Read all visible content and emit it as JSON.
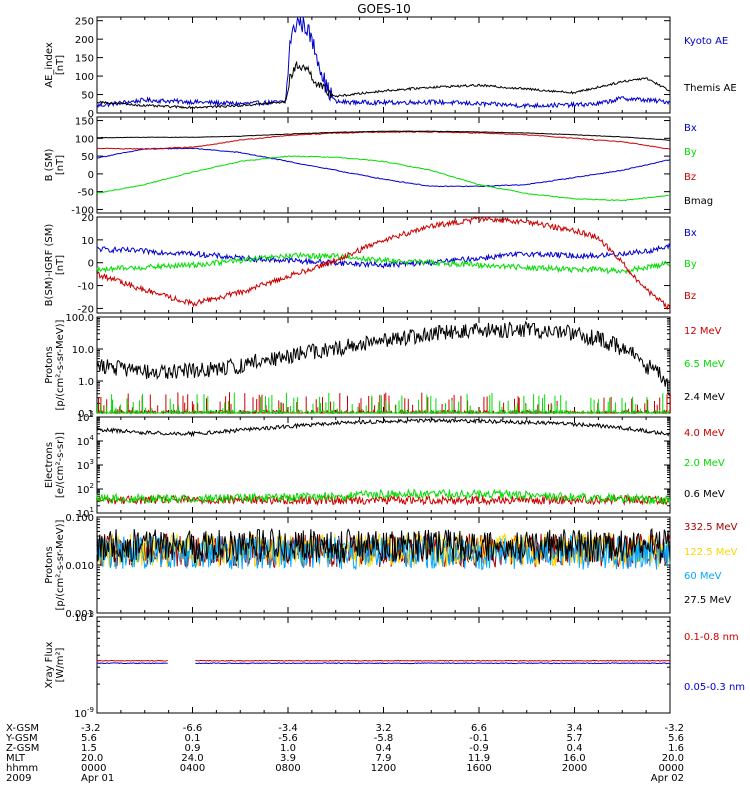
{
  "title": "GOES-10",
  "colors": {
    "black": "#000000",
    "blue": "#0000cc",
    "green": "#00dd00",
    "red": "#cc0000",
    "darkred": "#aa0000",
    "yellow": "#ffd400",
    "cyan": "#00a8ff",
    "purple": "#8000c0"
  },
  "time_axis": {
    "row_labels": [
      "X-GSM",
      "Y-GSM",
      "Z-GSM",
      "MLT",
      "hhmm",
      "2009"
    ],
    "columns": [
      {
        "values": [
          "-3.2",
          "5.6",
          "1.5",
          "20.0",
          "0000",
          "Apr 01"
        ]
      },
      {
        "values": [
          "-6.6",
          "0.1",
          "0.9",
          "24.0",
          "0400",
          ""
        ]
      },
      {
        "values": [
          "-3.4",
          "-5.6",
          "1.0",
          "3.9",
          "0800",
          ""
        ]
      },
      {
        "values": [
          "3.2",
          "-5.8",
          "0.4",
          "7.9",
          "1200",
          ""
        ]
      },
      {
        "values": [
          "6.6",
          "-0.1",
          "-0.9",
          "11.9",
          "1600",
          ""
        ]
      },
      {
        "values": [
          "3.4",
          "5.7",
          "0.4",
          "16.0",
          "2000",
          ""
        ]
      },
      {
        "values": [
          "-3.2",
          "5.6",
          "1.6",
          "20.0",
          "0000",
          "Apr 02"
        ]
      }
    ]
  },
  "chart_data": [
    {
      "type": "line",
      "panel": "ae",
      "ylabel": "AE_index [nT]",
      "yticks": [
        "0",
        "50",
        "100",
        "150",
        "200",
        "250"
      ],
      "ylim": [
        0,
        260
      ],
      "x": [
        0,
        2,
        4,
        6,
        7.9,
        8.1,
        8.4,
        8.8,
        9.2,
        9.6,
        10,
        12,
        14,
        16,
        18,
        20,
        21,
        22,
        23,
        24
      ],
      "series": [
        {
          "name": "Kyoto AE",
          "color": "blue",
          "values": [
            20,
            35,
            30,
            25,
            30,
            200,
            250,
            230,
            160,
            70,
            30,
            28,
            30,
            25,
            20,
            22,
            25,
            40,
            35,
            30
          ]
        },
        {
          "name": "Themis AE",
          "color": "black",
          "values": [
            30,
            20,
            15,
            20,
            30,
            100,
            130,
            120,
            80,
            60,
            45,
            60,
            70,
            75,
            65,
            55,
            70,
            85,
            95,
            60
          ]
        }
      ]
    },
    {
      "type": "line",
      "panel": "bsm",
      "ylabel": "B (SM) [nT]",
      "yticks": [
        "-100",
        "-50",
        "0",
        "50",
        "100",
        "150"
      ],
      "ylim": [
        -110,
        160
      ],
      "x": [
        0,
        2,
        4,
        6,
        8,
        10,
        12,
        14,
        16,
        18,
        20,
        22,
        24
      ],
      "series": [
        {
          "name": "Bx",
          "color": "blue",
          "values": [
            45,
            70,
            72,
            60,
            35,
            10,
            -15,
            -35,
            -35,
            -30,
            -10,
            10,
            40
          ]
        },
        {
          "name": "By",
          "color": "green",
          "values": [
            -55,
            -30,
            5,
            35,
            50,
            47,
            35,
            10,
            -30,
            -55,
            -70,
            -75,
            -60
          ]
        },
        {
          "name": "Bz",
          "color": "red",
          "values": [
            72,
            70,
            75,
            95,
            108,
            115,
            118,
            118,
            115,
            110,
            100,
            90,
            70
          ]
        },
        {
          "name": "Bmag",
          "color": "black",
          "values": [
            102,
            103,
            103,
            106,
            112,
            117,
            120,
            120,
            118,
            115,
            110,
            104,
            95
          ]
        }
      ]
    },
    {
      "type": "line",
      "panel": "bigrf",
      "ylabel": "B(SM)-IGRF (SM) [nT]",
      "yticks": [
        "-20",
        "-10",
        "0",
        "10",
        "20"
      ],
      "ylim": [
        -22,
        20
      ],
      "x": [
        0,
        2,
        4,
        6,
        8,
        10,
        12,
        14,
        16,
        18,
        20,
        21,
        22,
        23,
        24
      ],
      "series": [
        {
          "name": "Bx",
          "color": "blue",
          "values": [
            6,
            5,
            4,
            2,
            1,
            0,
            -1,
            0,
            2,
            4,
            3,
            3,
            4,
            5,
            7
          ]
        },
        {
          "name": "By",
          "color": "green",
          "values": [
            -3,
            -2,
            -1,
            1,
            3,
            3,
            1,
            0,
            -1,
            -2,
            -3,
            -3,
            -4,
            -2,
            0
          ]
        },
        {
          "name": "Bz",
          "color": "red",
          "values": [
            -5,
            -12,
            -18,
            -13,
            -6,
            1,
            10,
            16,
            19,
            18,
            14,
            11,
            0,
            -12,
            -20
          ]
        }
      ]
    },
    {
      "type": "line",
      "panel": "protons_low",
      "ylabel": "Protons [p/(cm2-s-sr-MeV)]",
      "yscale": "log",
      "yticks": [
        "0.1",
        "1.0",
        "10.0",
        "100.0"
      ],
      "ylim": [
        0.1,
        100
      ],
      "x": [
        0,
        2,
        4,
        6,
        8,
        10,
        12,
        14,
        16,
        18,
        20,
        22,
        23,
        24
      ],
      "series": [
        {
          "name": "12 MeV",
          "color": "red",
          "values": [
            0.1,
            0.1,
            0.1,
            0.1,
            0.1,
            0.1,
            0.1,
            0.1,
            0.1,
            0.1,
            0.1,
            0.1,
            0.1,
            0.1
          ]
        },
        {
          "name": "6.5 MeV",
          "color": "green",
          "values": [
            0.1,
            0.1,
            0.1,
            0.1,
            0.1,
            0.1,
            0.1,
            0.1,
            0.1,
            0.1,
            0.1,
            0.1,
            0.1,
            0.1
          ]
        },
        {
          "name": "2.4 MeV",
          "color": "black",
          "values": [
            3,
            2,
            2,
            3,
            6,
            10,
            18,
            30,
            40,
            40,
            30,
            10,
            3,
            0.5
          ]
        }
      ]
    },
    {
      "type": "line",
      "panel": "electrons",
      "ylabel": "Electrons [e/(cm2-s-sr)]",
      "yscale": "log",
      "yticks": [
        "10^1",
        "10^2",
        "10^3",
        "10^4",
        "10^5"
      ],
      "ylim": [
        10,
        100000
      ],
      "x": [
        0,
        2,
        4,
        6,
        8,
        10,
        12,
        14,
        16,
        18,
        20,
        22,
        24
      ],
      "series": [
        {
          "name": "4.0 MeV",
          "color": "red",
          "values": [
            35,
            35,
            35,
            35,
            35,
            35,
            35,
            35,
            35,
            35,
            35,
            35,
            35
          ]
        },
        {
          "name": "2.0 MeV",
          "color": "green",
          "values": [
            40,
            40,
            40,
            42,
            45,
            50,
            60,
            65,
            60,
            55,
            45,
            40,
            35
          ]
        },
        {
          "name": "0.6 MeV",
          "color": "black",
          "values": [
            30000,
            22000,
            20000,
            28000,
            40000,
            55000,
            65000,
            70000,
            68000,
            60000,
            50000,
            35000,
            18000
          ]
        }
      ]
    },
    {
      "type": "line",
      "panel": "protons_high",
      "ylabel": "Protons [p/(cm2-s-sr-MeV)]",
      "yscale": "log",
      "yticks": [
        "0.001",
        "0.010",
        "0.100"
      ],
      "ylim": [
        0.001,
        0.1
      ],
      "x": [
        0,
        4,
        8,
        12,
        16,
        20,
        24
      ],
      "series": [
        {
          "name": "332.5 MeV",
          "color": "darkred",
          "values": [
            0.02,
            0.02,
            0.02,
            0.02,
            0.02,
            0.02,
            0.02
          ]
        },
        {
          "name": "122.5 MeV",
          "color": "yellow",
          "values": [
            0.02,
            0.02,
            0.02,
            0.02,
            0.02,
            0.02,
            0.02
          ]
        },
        {
          "name": "60 MeV",
          "color": "cyan",
          "values": [
            0.018,
            0.018,
            0.018,
            0.018,
            0.018,
            0.018,
            0.018
          ]
        },
        {
          "name": "27.5 MeV",
          "color": "black",
          "values": [
            0.025,
            0.025,
            0.025,
            0.025,
            0.025,
            0.025,
            0.025
          ]
        }
      ]
    },
    {
      "type": "line",
      "panel": "xray",
      "ylabel": "Xray Flux [W/m2]",
      "yscale": "log",
      "yticks": [
        "10^-8",
        "10^-9"
      ],
      "ylim": [
        1e-09,
        1e-08
      ],
      "x": [
        0,
        3,
        3.4,
        3.7,
        4.1,
        8,
        12,
        16,
        20,
        24
      ],
      "series": [
        {
          "name": "0.1-0.8 nm",
          "color": "red",
          "values": [
            3.5e-09,
            3.5e-09,
            null,
            null,
            3.5e-09,
            3.5e-09,
            3.5e-09,
            3.5e-09,
            3.5e-09,
            3.5e-09
          ]
        },
        {
          "name": "0.05-0.3 nm",
          "color": "blue",
          "values": [
            3.3e-09,
            3.3e-09,
            null,
            null,
            3.3e-09,
            3.3e-09,
            3.3e-09,
            3.3e-09,
            3.3e-09,
            3.3e-09
          ]
        }
      ]
    }
  ]
}
